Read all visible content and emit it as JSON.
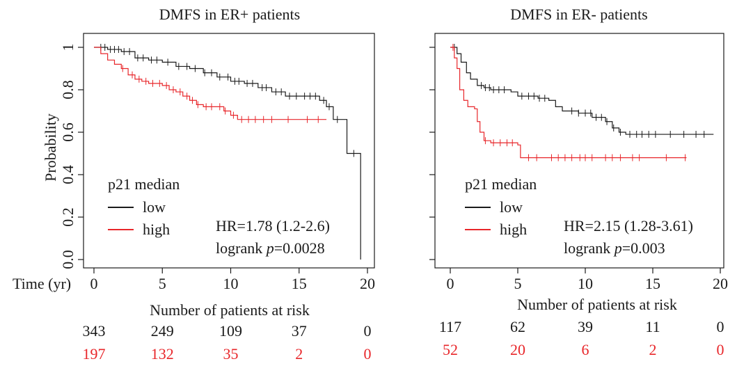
{
  "colors": {
    "low": "#1a1a1a",
    "high": "#e8262a",
    "axis": "#1a1a1a"
  },
  "chart_data": [
    {
      "type": "line",
      "title": "DMFS in ER+ patients",
      "xlabel": "Time (yr)",
      "ylabel": "Probability",
      "xlim": [
        0,
        20
      ],
      "ylim": [
        0,
        1
      ],
      "xticks": [
        "0",
        "5",
        "10",
        "15",
        "20"
      ],
      "yticks": [
        "0.0",
        "0.2",
        "0.4",
        "0.6",
        "0.8",
        "1"
      ],
      "legend_title": "p21 median",
      "legend_position": "bottom-left",
      "hr_text": "HR=1.78 (1.2-2.6)",
      "logrank_prefix": "logrank ",
      "logrank_p": "p",
      "logrank_value": "=0.0028",
      "series": [
        {
          "name": "low",
          "steps": [
            [
              0,
              1
            ],
            [
              1,
              0.99
            ],
            [
              2,
              0.98
            ],
            [
              3,
              0.95
            ],
            [
              4,
              0.94
            ],
            [
              5,
              0.93
            ],
            [
              6,
              0.91
            ],
            [
              7,
              0.9
            ],
            [
              8,
              0.88
            ],
            [
              9,
              0.86
            ],
            [
              10,
              0.84
            ],
            [
              11,
              0.83
            ],
            [
              12,
              0.81
            ],
            [
              13,
              0.79
            ],
            [
              14,
              0.77
            ],
            [
              16,
              0.77
            ],
            [
              16.5,
              0.75
            ],
            [
              17,
              0.72
            ],
            [
              17.5,
              0.66
            ],
            [
              18.5,
              0.66
            ],
            [
              18.5,
              0.5
            ],
            [
              19.5,
              0.5
            ],
            [
              19.5,
              0
            ]
          ],
          "censor_x": [
            0.5,
            0.8,
            1.2,
            1.5,
            1.8,
            2.2,
            2.6,
            3.2,
            3.6,
            4.2,
            4.6,
            5.4,
            6.2,
            6.8,
            7.4,
            8.1,
            8.6,
            9.2,
            9.8,
            10.3,
            10.6,
            11.2,
            11.6,
            12.3,
            12.6,
            13.3,
            13.7,
            14.3,
            14.8,
            15.4,
            15.8,
            16.2,
            16.8,
            17.2,
            17.8,
            19.0
          ]
        },
        {
          "name": "high",
          "steps": [
            [
              0,
              1
            ],
            [
              0.5,
              0.97
            ],
            [
              1,
              0.94
            ],
            [
              1.5,
              0.92
            ],
            [
              2,
              0.9
            ],
            [
              2.5,
              0.87
            ],
            [
              3,
              0.85
            ],
            [
              3.5,
              0.84
            ],
            [
              4,
              0.83
            ],
            [
              5,
              0.82
            ],
            [
              5.5,
              0.8
            ],
            [
              6,
              0.79
            ],
            [
              6.5,
              0.77
            ],
            [
              7,
              0.75
            ],
            [
              7.5,
              0.73
            ],
            [
              8,
              0.72
            ],
            [
              9,
              0.72
            ],
            [
              9.5,
              0.7
            ],
            [
              10,
              0.68
            ],
            [
              10.5,
              0.66
            ],
            [
              17,
              0.66
            ]
          ],
          "censor_x": [
            2.1,
            2.8,
            3.3,
            3.8,
            4.3,
            4.8,
            5.3,
            5.8,
            6.3,
            6.8,
            7.2,
            7.6,
            8.2,
            8.6,
            9.2,
            9.6,
            10.2,
            10.8,
            11.3,
            11.8,
            12.4,
            13.0,
            14.2,
            15.6,
            16.4
          ]
        }
      ],
      "risk_table": {
        "title": "Number of patients at risk",
        "times": [
          0,
          5,
          10,
          15,
          20
        ],
        "low": [
          "343",
          "249",
          "109",
          "37",
          "0"
        ],
        "high": [
          "197",
          "132",
          "35",
          "2",
          "0"
        ]
      }
    },
    {
      "type": "line",
      "title": "DMFS in ER- patients",
      "xlabel": "",
      "ylabel": "",
      "xlim": [
        0,
        20
      ],
      "ylim": [
        0,
        1
      ],
      "xticks": [
        "0",
        "5",
        "10",
        "15",
        "20"
      ],
      "yticks": [],
      "legend_title": "p21 median",
      "legend_position": "bottom-left",
      "hr_text": "HR=2.15 (1.28-3.61)",
      "logrank_prefix": "logrank ",
      "logrank_p": "p",
      "logrank_value": "=0.003",
      "series": [
        {
          "name": "low",
          "steps": [
            [
              0,
              1
            ],
            [
              0.5,
              0.97
            ],
            [
              0.8,
              0.93
            ],
            [
              1.2,
              0.88
            ],
            [
              1.5,
              0.85
            ],
            [
              2,
              0.82
            ],
            [
              2.5,
              0.81
            ],
            [
              3,
              0.8
            ],
            [
              4.5,
              0.79
            ],
            [
              5,
              0.77
            ],
            [
              6.5,
              0.76
            ],
            [
              7.3,
              0.75
            ],
            [
              7.8,
              0.72
            ],
            [
              8.3,
              0.7
            ],
            [
              9.5,
              0.69
            ],
            [
              10.5,
              0.67
            ],
            [
              11.5,
              0.65
            ],
            [
              12,
              0.62
            ],
            [
              12.5,
              0.6
            ],
            [
              13,
              0.59
            ],
            [
              19.5,
              0.59
            ]
          ],
          "censor_x": [
            0.3,
            2.3,
            2.6,
            2.9,
            3.2,
            3.6,
            4.0,
            5.3,
            5.8,
            6.2,
            6.6,
            7.0,
            9.0,
            9.5,
            10.0,
            10.4,
            10.8,
            11.2,
            11.6,
            12.1,
            12.6,
            13.3,
            13.8,
            14.2,
            14.7,
            15.2,
            16.3,
            17.3,
            18.2,
            18.8
          ]
        },
        {
          "name": "high",
          "steps": [
            [
              0,
              1
            ],
            [
              0.3,
              0.95
            ],
            [
              0.5,
              0.9
            ],
            [
              0.7,
              0.8
            ],
            [
              1,
              0.75
            ],
            [
              1.3,
              0.72
            ],
            [
              1.8,
              0.71
            ],
            [
              2,
              0.65
            ],
            [
              2.2,
              0.6
            ],
            [
              2.5,
              0.56
            ],
            [
              3,
              0.55
            ],
            [
              5,
              0.54
            ],
            [
              5.2,
              0.48
            ],
            [
              17.5,
              0.48
            ]
          ],
          "censor_x": [
            0.2,
            2.6,
            3.2,
            3.7,
            4.2,
            4.6,
            5.8,
            6.4,
            7.5,
            8.0,
            8.5,
            9.0,
            9.6,
            10.0,
            10.5,
            11.5,
            12.0,
            12.6,
            13.5,
            14.0,
            16.0,
            17.4
          ]
        }
      ],
      "risk_table": {
        "title": "Number of patients at risk",
        "times": [
          0,
          5,
          10,
          15,
          20
        ],
        "low": [
          "117",
          "62",
          "39",
          "11",
          "0"
        ],
        "high": [
          "52",
          "20",
          "6",
          "2",
          "0"
        ]
      }
    }
  ]
}
